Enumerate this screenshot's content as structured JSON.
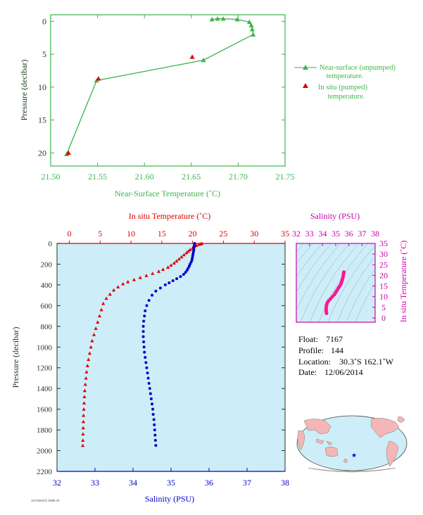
{
  "colors": {
    "green": "#3cb44b",
    "red": "#e00000",
    "blue": "#0000cc",
    "magenta": "#cc00aa",
    "pink": "#ff1493",
    "dark": "#1a3a1a",
    "plot_bg": "#cdeef8",
    "land": "#f4b6b6",
    "ocean": "#cdeef8"
  },
  "chart_data": [
    {
      "type": "line",
      "panel": "near-surface",
      "xlabel": "Near-Surface Temperature (˚C)",
      "ylabel": "Pressure (decibar)",
      "xlim": [
        21.5,
        21.75
      ],
      "ylim": [
        22,
        -1
      ],
      "xticks": [
        "21.50",
        "21.55",
        "21.60",
        "21.65",
        "21.70",
        "21.75"
      ],
      "yticks": [
        "0",
        "5",
        "10",
        "15",
        "20"
      ],
      "legend_position": "right",
      "series": [
        {
          "name": "Near-surface (unpumped) temperature.",
          "marker": "triangle-filled",
          "color": "green",
          "points": [
            [
              21.672,
              -0.3
            ],
            [
              21.678,
              -0.4
            ],
            [
              21.684,
              -0.4
            ],
            [
              21.699,
              -0.3
            ],
            [
              21.712,
              0.1
            ],
            [
              21.714,
              0.6
            ],
            [
              21.715,
              1.2
            ],
            [
              21.716,
              2.0
            ],
            [
              21.663,
              5.9
            ],
            [
              21.549,
              9.0
            ],
            [
              21.517,
              20.2
            ]
          ]
        },
        {
          "name": "In situ (pumped) temperature.",
          "marker": "triangle-filled",
          "color": "red",
          "points": [
            [
              21.651,
              5.4
            ],
            [
              21.551,
              8.7
            ],
            [
              21.519,
              20.0
            ]
          ]
        }
      ]
    },
    {
      "type": "scatter",
      "panel": "profile",
      "xlabel": "Salinity (PSU)",
      "x2label": "In situ Temperature (˚C)",
      "ylabel": "Pressure (decibar)",
      "xlim": [
        32,
        38
      ],
      "x2lim": [
        -2,
        35
      ],
      "ylim": [
        2200,
        0
      ],
      "xticks": [
        "32",
        "33",
        "34",
        "35",
        "36",
        "37",
        "38"
      ],
      "x2ticks": [
        "0",
        "5",
        "10",
        "15",
        "20",
        "25",
        "30",
        "35"
      ],
      "yticks": [
        "0",
        "200",
        "400",
        "600",
        "800",
        "1000",
        "1200",
        "1400",
        "1600",
        "1800",
        "2000",
        "2200"
      ],
      "series": [
        {
          "name": "In situ Temperature (˚C)",
          "marker": "triangle",
          "color": "red",
          "points": [
            [
              21.5,
              0
            ],
            [
              21.3,
              5
            ],
            [
              21.0,
              10
            ],
            [
              20.6,
              20
            ],
            [
              20.3,
              30
            ],
            [
              20.0,
              45
            ],
            [
              19.6,
              60
            ],
            [
              19.3,
              75
            ],
            [
              19.0,
              90
            ],
            [
              18.6,
              110
            ],
            [
              18.2,
              130
            ],
            [
              17.8,
              150
            ],
            [
              17.4,
              170
            ],
            [
              17.0,
              190
            ],
            [
              16.5,
              210
            ],
            [
              16.0,
              230
            ],
            [
              15.2,
              250
            ],
            [
              14.5,
              270
            ],
            [
              13.5,
              290
            ],
            [
              12.5,
              310
            ],
            [
              11.5,
              330
            ],
            [
              10.5,
              350
            ],
            [
              9.5,
              370
            ],
            [
              8.7,
              390
            ],
            [
              7.9,
              420
            ],
            [
              7.2,
              450
            ],
            [
              6.6,
              490
            ],
            [
              6.0,
              530
            ],
            [
              5.5,
              580
            ],
            [
              5.2,
              640
            ],
            [
              4.9,
              700
            ],
            [
              4.6,
              760
            ],
            [
              4.3,
              820
            ],
            [
              4.0,
              880
            ],
            [
              3.7,
              940
            ],
            [
              3.5,
              1000
            ],
            [
              3.3,
              1060
            ],
            [
              3.1,
              1120
            ],
            [
              2.95,
              1180
            ],
            [
              2.8,
              1240
            ],
            [
              2.7,
              1300
            ],
            [
              2.6,
              1360
            ],
            [
              2.5,
              1420
            ],
            [
              2.45,
              1480
            ],
            [
              2.4,
              1540
            ],
            [
              2.35,
              1600
            ],
            [
              2.3,
              1660
            ],
            [
              2.28,
              1720
            ],
            [
              2.25,
              1780
            ],
            [
              2.22,
              1840
            ],
            [
              2.2,
              1900
            ],
            [
              2.18,
              1950
            ]
          ]
        },
        {
          "name": "Salinity (PSU)",
          "marker": "dot",
          "color": "blue",
          "points": [
            [
              35.62,
              0
            ],
            [
              35.61,
              20
            ],
            [
              35.6,
              40
            ],
            [
              35.6,
              60
            ],
            [
              35.59,
              80
            ],
            [
              35.58,
              100
            ],
            [
              35.57,
              120
            ],
            [
              35.56,
              140
            ],
            [
              35.55,
              160
            ],
            [
              35.53,
              180
            ],
            [
              35.5,
              200
            ],
            [
              35.48,
              220
            ],
            [
              35.45,
              240
            ],
            [
              35.42,
              260
            ],
            [
              35.38,
              280
            ],
            [
              35.33,
              300
            ],
            [
              35.25,
              320
            ],
            [
              35.15,
              340
            ],
            [
              35.05,
              360
            ],
            [
              34.95,
              380
            ],
            [
              34.85,
              400
            ],
            [
              34.72,
              430
            ],
            [
              34.6,
              460
            ],
            [
              34.5,
              500
            ],
            [
              34.42,
              550
            ],
            [
              34.36,
              600
            ],
            [
              34.32,
              650
            ],
            [
              34.3,
              700
            ],
            [
              34.28,
              750
            ],
            [
              34.27,
              800
            ],
            [
              34.27,
              850
            ],
            [
              34.27,
              900
            ],
            [
              34.28,
              950
            ],
            [
              34.29,
              1000
            ],
            [
              34.3,
              1050
            ],
            [
              34.32,
              1100
            ],
            [
              34.34,
              1150
            ],
            [
              34.36,
              1200
            ],
            [
              34.38,
              1250
            ],
            [
              34.4,
              1300
            ],
            [
              34.42,
              1350
            ],
            [
              34.44,
              1400
            ],
            [
              34.46,
              1450
            ],
            [
              34.48,
              1500
            ],
            [
              34.5,
              1550
            ],
            [
              34.52,
              1600
            ],
            [
              34.53,
              1650
            ],
            [
              34.55,
              1700
            ],
            [
              34.56,
              1750
            ],
            [
              34.57,
              1800
            ],
            [
              34.58,
              1850
            ],
            [
              34.59,
              1900
            ],
            [
              34.6,
              1950
            ]
          ]
        }
      ]
    },
    {
      "type": "scatter",
      "panel": "ts-diagram",
      "xlabel": "Salinity (PSU)",
      "ylabel": "In situ Temperature (˚C)",
      "xlim": [
        32,
        38
      ],
      "ylim": [
        -2,
        35
      ],
      "xticks": [
        "32",
        "33",
        "34",
        "35",
        "36",
        "37",
        "38"
      ],
      "yticks": [
        "0",
        "5",
        "10",
        "15",
        "20",
        "25",
        "30",
        "35"
      ],
      "series": [
        {
          "name": "T-S",
          "marker": "dot",
          "color": "pink",
          "points": [
            [
              34.3,
              2.2
            ],
            [
              34.28,
              3.0
            ],
            [
              34.27,
              4.0
            ],
            [
              34.28,
              5.0
            ],
            [
              34.3,
              6.0
            ],
            [
              34.35,
              7.0
            ],
            [
              34.45,
              8.0
            ],
            [
              34.6,
              9.0
            ],
            [
              34.75,
              10.0
            ],
            [
              34.9,
              11.0
            ],
            [
              35.0,
              12.0
            ],
            [
              35.1,
              13.0
            ],
            [
              35.2,
              14.0
            ],
            [
              35.3,
              15.0
            ],
            [
              35.4,
              16.0
            ],
            [
              35.45,
              17.0
            ],
            [
              35.5,
              18.0
            ],
            [
              35.55,
              19.0
            ],
            [
              35.58,
              20.0
            ],
            [
              35.6,
              21.0
            ],
            [
              35.62,
              21.5
            ]
          ]
        }
      ]
    }
  ],
  "info": {
    "float_label": "Float:",
    "float": "7167",
    "profile_label": "Profile:",
    "profile": "144",
    "location_label": "Location:",
    "location": "30.3˚S  162.1˚W",
    "date_label": "Date:",
    "date": "12/06/2014"
  },
  "footer": "AUTOMATIC DISPLAY"
}
